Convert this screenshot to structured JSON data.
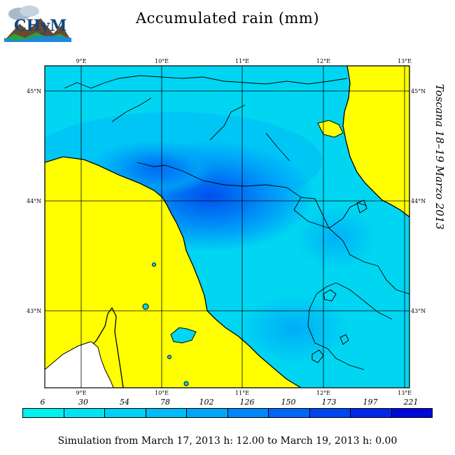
{
  "title": "Accumulated rain (mm)",
  "subtitle_vertical": "Toscana 18–19 Marzo 2013",
  "logo": {
    "text": "CHyM",
    "icon": "chym-logo-icon"
  },
  "lon_labels_top": [
    "9°E",
    "10°E",
    "11°E",
    "12°E",
    "13°E"
  ],
  "lon_labels_bottom": [
    "9°E",
    "10°E",
    "11°E",
    "12°E",
    "13°E"
  ],
  "lat_labels_left": [
    "45°N",
    "44°N",
    "43°N"
  ],
  "lat_labels_right": [
    "45°N",
    "44°N",
    "43°N"
  ],
  "colorbar": {
    "levels": [
      "6",
      "30",
      "54",
      "78",
      "102",
      "126",
      "150",
      "173",
      "197",
      "221"
    ],
    "colors": [
      "#00f0f0",
      "#00e2f4",
      "#00cff6",
      "#00bcf8",
      "#00a6fa",
      "#0086fa",
      "#0064f8",
      "#0046ee",
      "#0028e6",
      "#0008d8"
    ]
  },
  "map_colors": {
    "land_low": "#00e6f0",
    "rain_mid": "#00bef6",
    "rain_high": "#0064f4",
    "sea": "#ffff00",
    "outside": "#ffffff",
    "boundary": "#000000"
  },
  "footer": "Simulation from March 17, 2013 h: 12.00 to March 19, 2013 h: 0.00"
}
